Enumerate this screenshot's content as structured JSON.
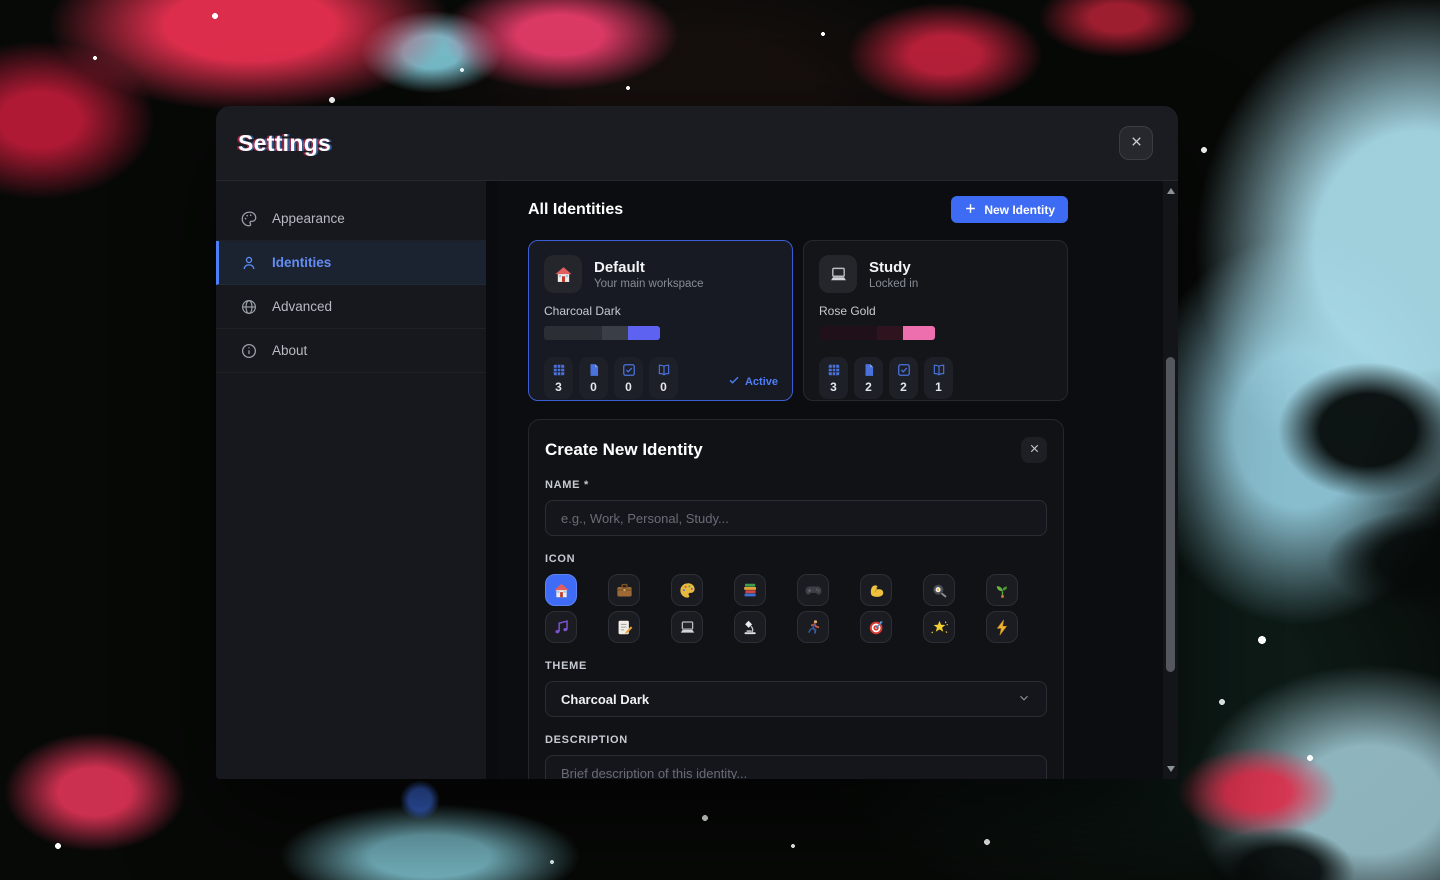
{
  "window": {
    "title": "Settings"
  },
  "sidebar": {
    "items": [
      {
        "label": "Appearance",
        "icon": "palette"
      },
      {
        "label": "Identities",
        "icon": "person",
        "active": true
      },
      {
        "label": "Advanced",
        "icon": "globe"
      },
      {
        "label": "About",
        "icon": "info"
      }
    ]
  },
  "identities": {
    "heading": "All Identities",
    "new_button_label": "New Identity",
    "cards": [
      {
        "name": "Default",
        "subtitle": "Your main workspace",
        "icon": "house",
        "theme": "Charcoal Dark",
        "swatches": [
          "#2b2e35",
          "#3a3e46",
          "#5d62f0"
        ],
        "swatch_widths": [
          50,
          22,
          28
        ],
        "active": true,
        "active_label": "Active",
        "stats": [
          {
            "icon": "grid",
            "value": "3"
          },
          {
            "icon": "file",
            "value": "0"
          },
          {
            "icon": "check-square",
            "value": "0"
          },
          {
            "icon": "book",
            "value": "0"
          }
        ]
      },
      {
        "name": "Study",
        "subtitle": "Locked in",
        "icon": "laptop",
        "theme": "Rose Gold",
        "swatches": [
          "#201019",
          "#2f1420",
          "#ee6fae"
        ],
        "swatch_widths": [
          50,
          22,
          28
        ],
        "active": false,
        "active_label": "Active",
        "stats": [
          {
            "icon": "grid",
            "value": "3"
          },
          {
            "icon": "file",
            "value": "2"
          },
          {
            "icon": "check-square",
            "value": "2"
          },
          {
            "icon": "book",
            "value": "1"
          }
        ]
      }
    ]
  },
  "create": {
    "title": "Create New Identity",
    "name_label": "NAME *",
    "name_placeholder": "e.g., Work, Personal, Study...",
    "icon_label": "ICON",
    "icon_options": [
      {
        "icon": "house",
        "selected": true
      },
      {
        "icon": "briefcase"
      },
      {
        "icon": "palette-colored"
      },
      {
        "icon": "books"
      },
      {
        "icon": "game-controller"
      },
      {
        "icon": "flexed-biceps"
      },
      {
        "icon": "frying-pan"
      },
      {
        "icon": "seedling"
      },
      {
        "icon": "music-notes"
      },
      {
        "icon": "memo"
      },
      {
        "icon": "laptop"
      },
      {
        "icon": "microscope"
      },
      {
        "icon": "runner"
      },
      {
        "icon": "dart-target"
      },
      {
        "icon": "glowing-star"
      },
      {
        "icon": "lightning"
      }
    ],
    "theme_label": "THEME",
    "theme_value": "Charcoal Dark",
    "description_label": "DESCRIPTION",
    "description_placeholder": "Brief description of this identity..."
  },
  "colors": {
    "accent": "#3e6cf6",
    "active_blue": "#4d7ef7"
  }
}
